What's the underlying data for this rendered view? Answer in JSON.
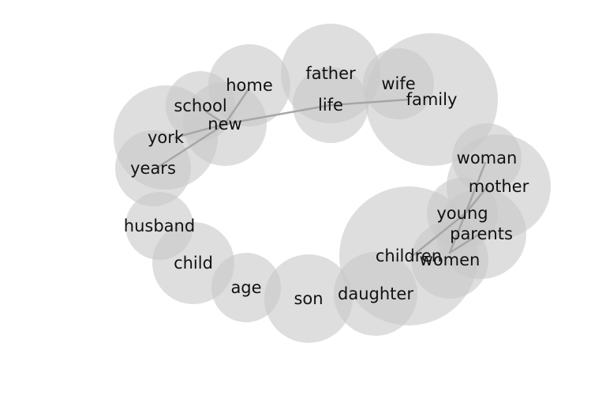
{
  "diagram": {
    "type": "word-bubble-network",
    "colors": {
      "bubble": "#c8c8c8",
      "edge": "#a6a6a6",
      "text": "#111111",
      "background": "#ffffff"
    },
    "nodes": [
      {
        "id": "father",
        "label": "father"
      },
      {
        "id": "family",
        "label": "family"
      },
      {
        "id": "wife",
        "label": "wife"
      },
      {
        "id": "life",
        "label": "life"
      },
      {
        "id": "home",
        "label": "home"
      },
      {
        "id": "school",
        "label": "school"
      },
      {
        "id": "new",
        "label": "new"
      },
      {
        "id": "york",
        "label": "york"
      },
      {
        "id": "years",
        "label": "years"
      },
      {
        "id": "woman",
        "label": "woman"
      },
      {
        "id": "mother",
        "label": "mother"
      },
      {
        "id": "young",
        "label": "young"
      },
      {
        "id": "parents",
        "label": "parents"
      },
      {
        "id": "children",
        "label": "children"
      },
      {
        "id": "women",
        "label": "women"
      },
      {
        "id": "husband",
        "label": "husband"
      },
      {
        "id": "child",
        "label": "child"
      },
      {
        "id": "age",
        "label": "age"
      },
      {
        "id": "son",
        "label": "son"
      },
      {
        "id": "daughter",
        "label": "daughter"
      }
    ],
    "edges": [
      {
        "from": "home",
        "to": "new"
      },
      {
        "from": "school",
        "to": "new"
      },
      {
        "from": "york",
        "to": "new"
      },
      {
        "from": "years",
        "to": "new"
      },
      {
        "from": "new",
        "to": "life"
      },
      {
        "from": "life",
        "to": "family"
      },
      {
        "from": "woman",
        "to": "young"
      },
      {
        "from": "mother",
        "to": "young"
      },
      {
        "from": "young",
        "to": "children"
      },
      {
        "from": "young",
        "to": "women"
      },
      {
        "from": "parents",
        "to": "women"
      }
    ]
  }
}
